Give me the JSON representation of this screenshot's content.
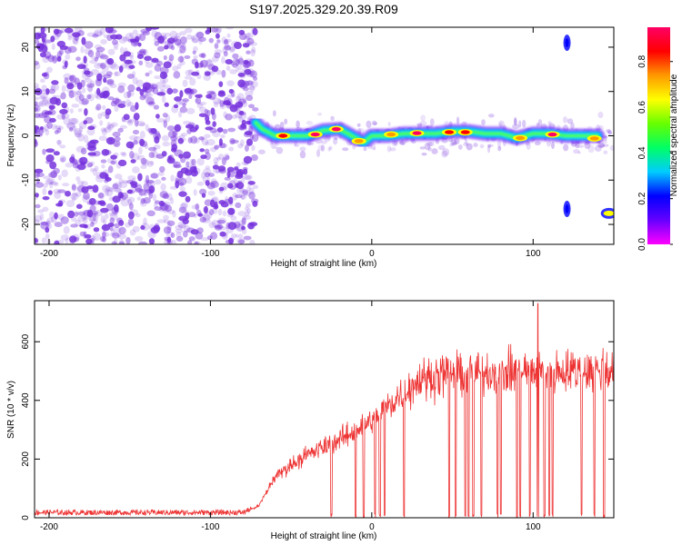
{
  "title": "S197.2025.329.20.39.R09",
  "colors": {
    "snr_line": "#ee3333",
    "scatter_noise": "#7733dd",
    "colorbar": [
      "#ff00ff",
      "#6600ff",
      "#0000ff",
      "#00ccff",
      "#00ff66",
      "#66ff00",
      "#ffff00",
      "#ff9900",
      "#ff0000",
      "#ff0066"
    ]
  },
  "chart_data": [
    {
      "type": "heatmap",
      "title": "",
      "xlabel": "Height of straight line (km)",
      "ylabel": "Frequency (Hz)",
      "xlim": [
        -209,
        150
      ],
      "ylim": [
        -24.5,
        24.5
      ],
      "x_ticks": [
        -200,
        -100,
        0,
        100
      ],
      "x_tick_labels": [
        "-200",
        "-100",
        "0",
        "100"
      ],
      "y_ticks": [
        20,
        10,
        0,
        -10,
        -20
      ],
      "y_tick_labels": [
        "20",
        "10",
        "0",
        "-10",
        "-20"
      ],
      "colorbar": {
        "label": "Normalized spectral amplitude",
        "range": [
          0.0,
          0.95
        ],
        "ticks": [
          0.0,
          0.2,
          0.4,
          0.6,
          0.8
        ],
        "tick_labels": [
          "0.0",
          "0.2",
          "0.4",
          "0.6",
          "0.8"
        ]
      },
      "noise_region": {
        "x_range": [
          -209,
          -72
        ],
        "frequency_range": [
          -24.5,
          24.5
        ],
        "amplitude_range": [
          0.0,
          0.2
        ]
      },
      "ridge": [
        {
          "x": -72,
          "f": 3
        },
        {
          "x": -68,
          "f": 1.5
        },
        {
          "x": -60,
          "f": 0
        },
        {
          "x": -50,
          "f": 0
        },
        {
          "x": -40,
          "f": 0
        },
        {
          "x": -30,
          "f": 1.2
        },
        {
          "x": -20,
          "f": 1.5
        },
        {
          "x": -10,
          "f": -0.5
        },
        {
          "x": -5,
          "f": -1.5
        },
        {
          "x": 0,
          "f": 0
        },
        {
          "x": 10,
          "f": 0
        },
        {
          "x": 20,
          "f": 0.5
        },
        {
          "x": 30,
          "f": 0.5
        },
        {
          "x": 40,
          "f": 0.5
        },
        {
          "x": 50,
          "f": 1
        },
        {
          "x": 60,
          "f": 1
        },
        {
          "x": 70,
          "f": 0.5
        },
        {
          "x": 80,
          "f": 0.5
        },
        {
          "x": 90,
          "f": -0.5
        },
        {
          "x": 100,
          "f": 0.5
        },
        {
          "x": 110,
          "f": 0.5
        },
        {
          "x": 120,
          "f": 0
        },
        {
          "x": 130,
          "f": 0
        },
        {
          "x": 140,
          "f": 0
        }
      ],
      "hotspots": [
        {
          "x": -55,
          "f": 0,
          "amp": 0.8
        },
        {
          "x": -35,
          "f": 0.3,
          "amp": 0.9
        },
        {
          "x": -22,
          "f": 1.5,
          "amp": 0.95
        },
        {
          "x": -8,
          "f": -1.2,
          "amp": 0.7
        },
        {
          "x": 12,
          "f": 0.3,
          "amp": 0.75
        },
        {
          "x": 28,
          "f": 0.6,
          "amp": 0.9
        },
        {
          "x": 48,
          "f": 0.8,
          "amp": 0.85
        },
        {
          "x": 58,
          "f": 0.8,
          "amp": 0.8
        },
        {
          "x": 92,
          "f": -0.5,
          "amp": 0.75
        },
        {
          "x": 112,
          "f": 0.3,
          "amp": 0.9
        },
        {
          "x": 138,
          "f": -0.6,
          "amp": 0.7
        }
      ],
      "side_features": [
        {
          "x": 121,
          "f": 21,
          "amp": 0.2
        },
        {
          "x": 121,
          "f": -16.5,
          "amp": 0.2
        },
        {
          "x": 147,
          "f": -17.5,
          "amp": 0.6
        }
      ]
    },
    {
      "type": "line",
      "title": "",
      "xlabel": "Height of straight line (km)",
      "ylabel": "SNR (10 * v/v)",
      "xlim": [
        -209,
        150
      ],
      "ylim": [
        0,
        740
      ],
      "x_ticks": [
        -200,
        -100,
        0,
        100
      ],
      "x_tick_labels": [
        "-200",
        "-100",
        "0",
        "100"
      ],
      "y_ticks": [
        0,
        200,
        400,
        600
      ],
      "y_tick_labels": [
        "0",
        "200",
        "400",
        "600"
      ],
      "trend": [
        {
          "x": -209,
          "y": 18
        },
        {
          "x": -150,
          "y": 18
        },
        {
          "x": -80,
          "y": 18
        },
        {
          "x": -70,
          "y": 40
        },
        {
          "x": -60,
          "y": 140
        },
        {
          "x": -45,
          "y": 200
        },
        {
          "x": -30,
          "y": 240
        },
        {
          "x": -15,
          "y": 280
        },
        {
          "x": 0,
          "y": 330
        },
        {
          "x": 10,
          "y": 380
        },
        {
          "x": 20,
          "y": 430
        },
        {
          "x": 30,
          "y": 470
        },
        {
          "x": 45,
          "y": 490
        },
        {
          "x": 60,
          "y": 495
        },
        {
          "x": 80,
          "y": 495
        },
        {
          "x": 100,
          "y": 500
        },
        {
          "x": 120,
          "y": 500
        },
        {
          "x": 150,
          "y": 505
        }
      ],
      "peak_value": 730,
      "dropout_positions": [
        -25,
        -10,
        -5,
        2,
        5,
        8,
        20,
        48,
        52,
        58,
        60,
        63,
        68,
        78,
        80,
        90,
        92,
        98,
        103,
        107,
        110,
        112,
        130,
        138,
        144
      ]
    }
  ]
}
